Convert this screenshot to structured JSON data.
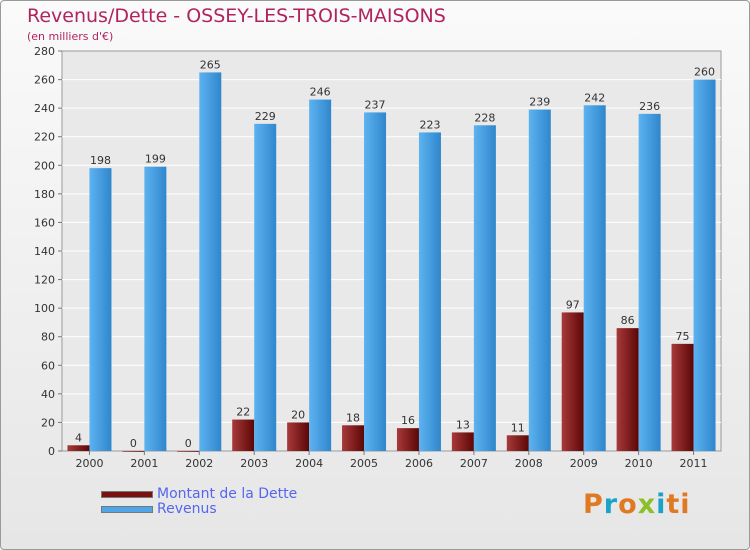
{
  "chart_data": {
    "type": "bar",
    "title": "Revenus/Dette - OSSEY-LES-TROIS-MAISONS",
    "subtitle": "(en milliers d'€)",
    "categories": [
      "2000",
      "2001",
      "2002",
      "2003",
      "2004",
      "2005",
      "2006",
      "2007",
      "2008",
      "2009",
      "2010",
      "2011"
    ],
    "series": [
      {
        "name": "Montant de la Dette",
        "color": "#7a1010",
        "values": [
          4,
          0,
          0,
          22,
          20,
          18,
          16,
          13,
          11,
          97,
          86,
          75
        ]
      },
      {
        "name": "Revenus",
        "color": "#4da6ea",
        "values": [
          198,
          199,
          265,
          229,
          246,
          237,
          223,
          228,
          239,
          242,
          236,
          260
        ]
      }
    ],
    "ylim": [
      0,
      280
    ],
    "yticks": [
      0,
      20,
      40,
      60,
      80,
      100,
      120,
      140,
      160,
      180,
      200,
      220,
      240,
      260,
      280
    ],
    "grid": true,
    "legend_position": "bottom-left"
  },
  "logo": {
    "text": "Proxiti",
    "letters": [
      "P",
      "r",
      "o",
      "x",
      "i",
      "t",
      "i"
    ]
  }
}
